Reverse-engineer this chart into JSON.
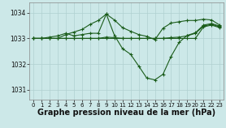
{
  "bg_color": "#cce8e8",
  "grid_color": "#b0d0d0",
  "line_color": "#1a5c1a",
  "xlabel": "Graphe pression niveau de la mer (hPa)",
  "xlabel_fontsize": 7,
  "ylim": [
    1030.6,
    1034.4
  ],
  "yticks": [
    1031,
    1032,
    1033,
    1034
  ],
  "xlim": [
    -0.5,
    23.5
  ],
  "xticks": [
    0,
    1,
    2,
    3,
    4,
    5,
    6,
    7,
    8,
    9,
    10,
    11,
    12,
    13,
    14,
    15,
    16,
    17,
    18,
    19,
    20,
    21,
    22,
    23
  ],
  "series": [
    [
      1033.0,
      1033.0,
      1033.0,
      1033.0,
      1033.15,
      1033.25,
      1033.35,
      1033.55,
      1033.7,
      1033.95,
      1033.12,
      1032.6,
      1032.38,
      1031.92,
      1031.45,
      1031.38,
      1031.6,
      1032.3,
      1032.85,
      1033.12,
      1033.22,
      1033.52,
      1033.58,
      1033.48
    ],
    [
      1033.0,
      1033.0,
      1033.05,
      1033.1,
      1033.2,
      1033.1,
      1033.15,
      1033.2,
      1033.2,
      1033.95,
      1033.72,
      1033.42,
      1033.28,
      1033.15,
      1033.08,
      1032.95,
      1033.4,
      1033.6,
      1033.65,
      1033.7,
      1033.7,
      1033.75,
      1033.72,
      1033.52
    ],
    [
      1033.0,
      1033.0,
      1033.0,
      1033.0,
      1033.0,
      1033.0,
      1033.0,
      1033.0,
      1033.0,
      1033.05,
      1033.03,
      1033.0,
      1033.0,
      1033.0,
      1033.0,
      1033.0,
      1033.0,
      1033.03,
      1033.05,
      1033.1,
      1033.2,
      1033.48,
      1033.55,
      1033.45
    ],
    [
      1033.0,
      1033.0,
      1033.0,
      1033.0,
      1033.0,
      1033.0,
      1033.0,
      1033.0,
      1033.0,
      1033.0,
      1033.0,
      1033.0,
      1033.0,
      1033.0,
      1033.0,
      1033.0,
      1033.0,
      1033.0,
      1033.0,
      1033.0,
      1033.0,
      1033.45,
      1033.52,
      1033.42
    ]
  ]
}
